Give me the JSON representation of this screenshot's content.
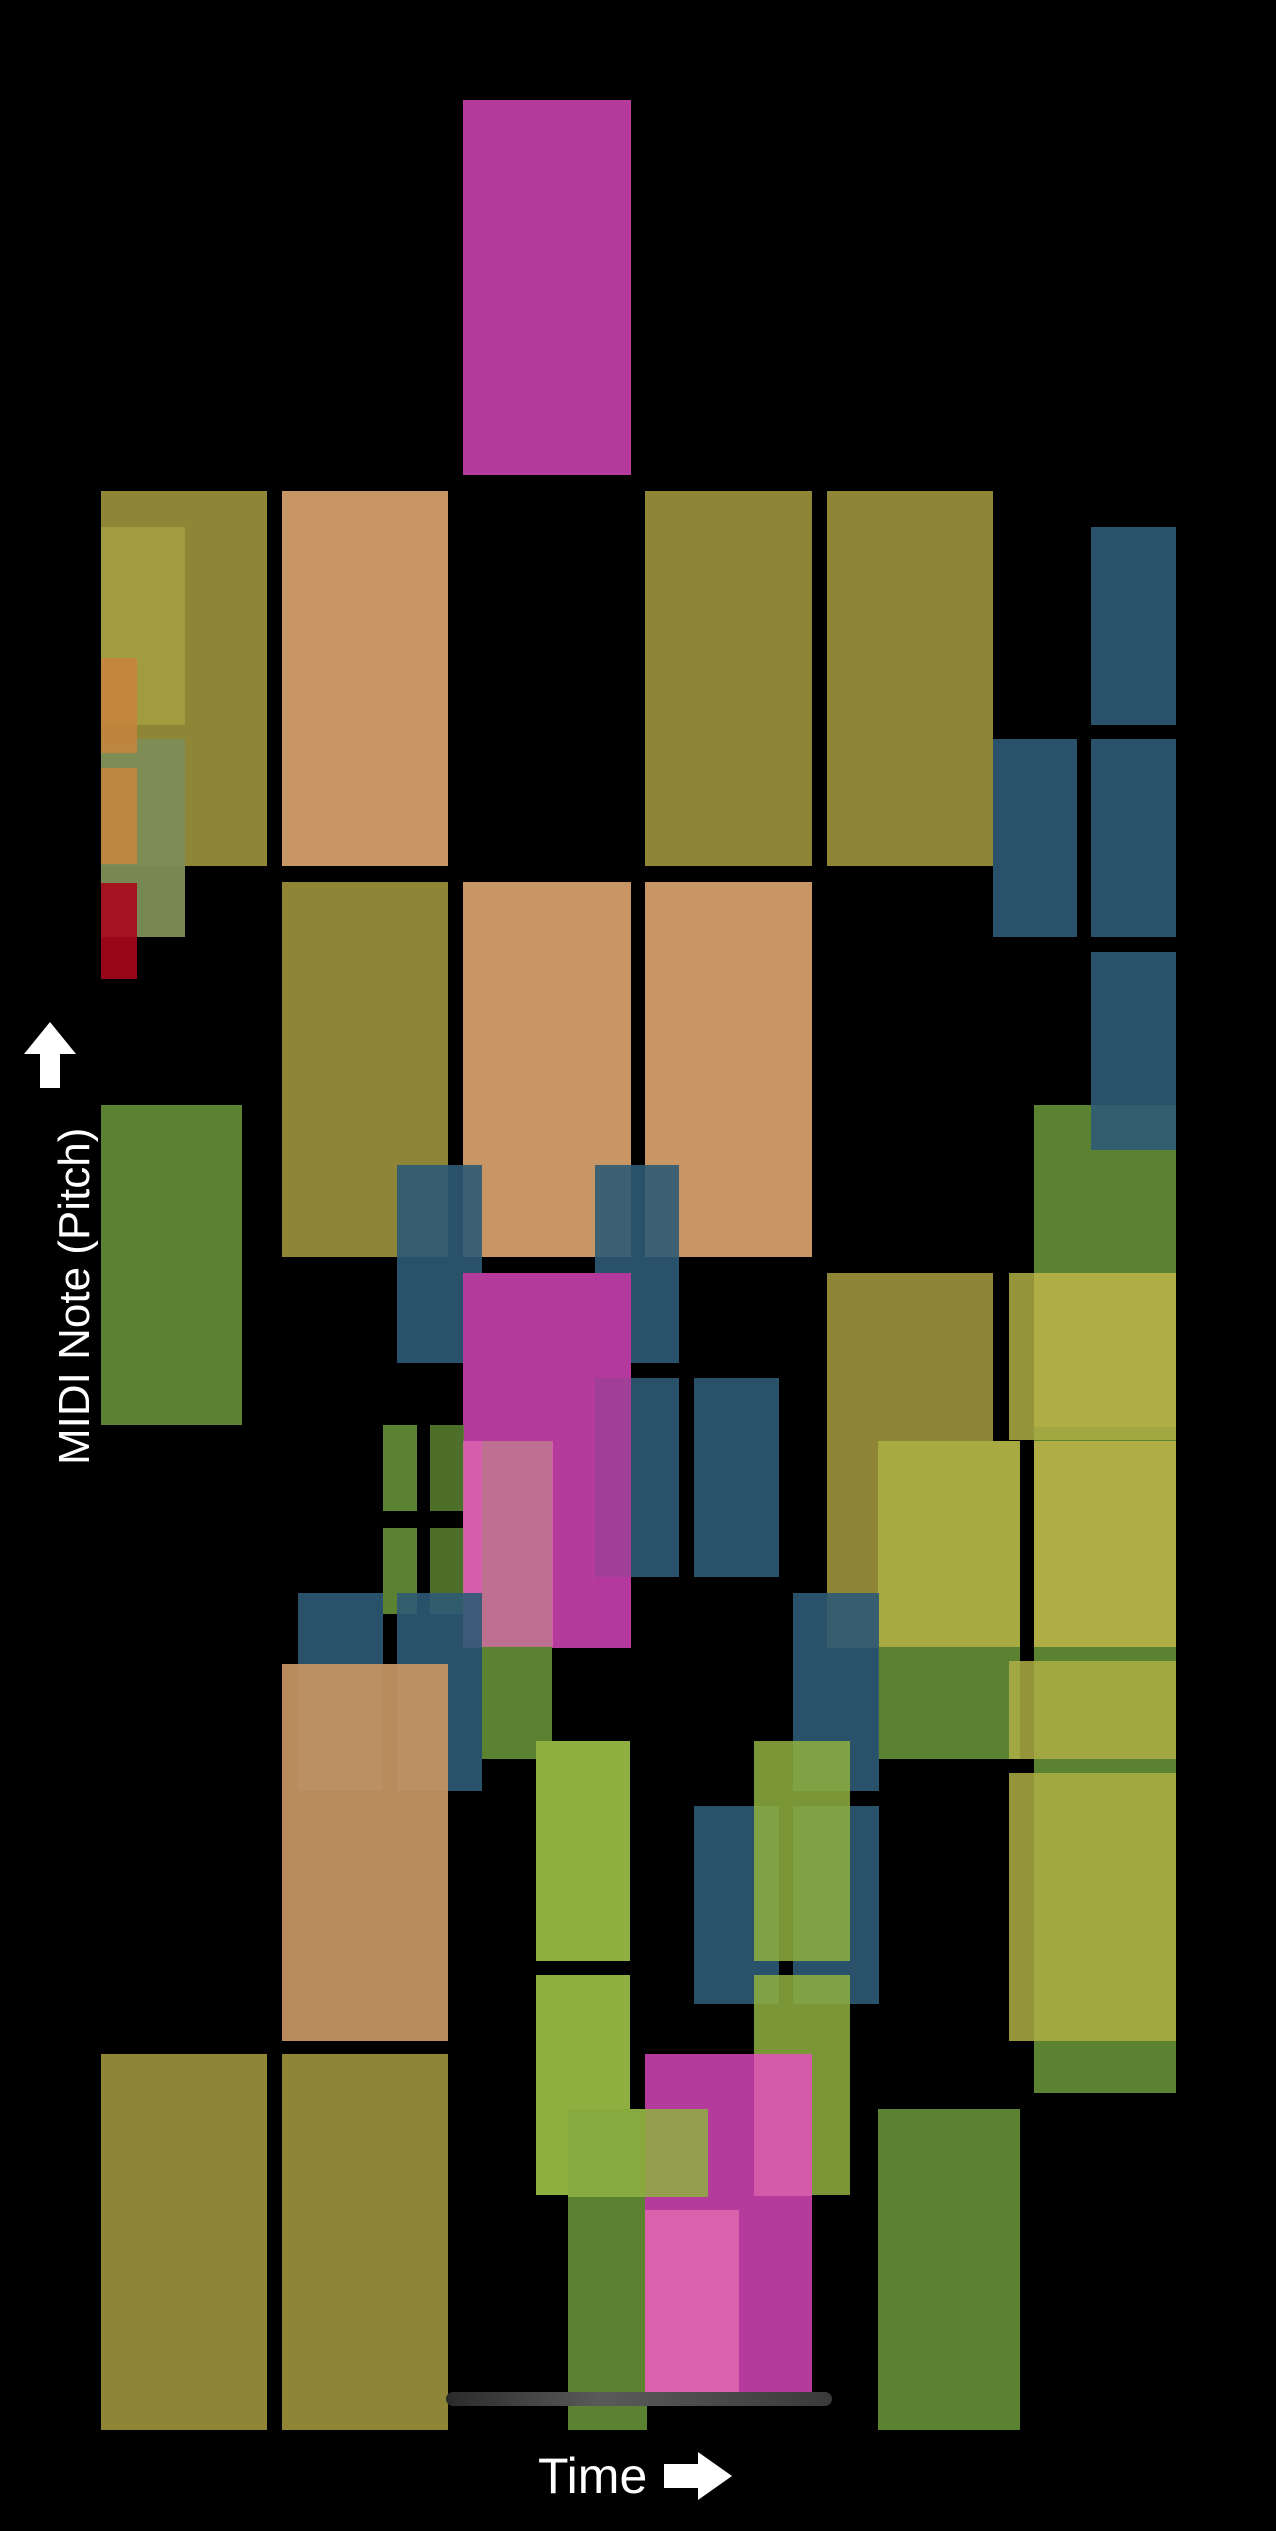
{
  "axes": {
    "y_label": "MIDI Note (Pitch)",
    "x_label": "Time",
    "y_arrow_icon": "arrow-up-icon",
    "x_arrow_icon": "arrow-right-icon"
  },
  "palette": {
    "olive": "#8f8536",
    "tan": "#c89664",
    "magenta": "#b43a9c",
    "pink": "#e06ab0",
    "steel_blue": "#2e5a74",
    "green": "#5a8230",
    "lime": "#8fb040",
    "yellow_green": "#aeae44",
    "orange": "#c8843c",
    "red": "#a8071a"
  },
  "notes": [
    {
      "c": "magenta",
      "o": 1,
      "r": [
        463,
        100,
        168,
        375
      ]
    },
    {
      "c": "olive",
      "o": 1,
      "r": [
        101,
        491,
        166,
        375
      ]
    },
    {
      "c": "tan",
      "o": 1,
      "r": [
        282,
        491,
        166,
        375
      ]
    },
    {
      "c": "olive",
      "o": 1,
      "r": [
        645,
        491,
        167,
        375
      ]
    },
    {
      "c": "olive",
      "o": 1,
      "r": [
        827,
        491,
        166,
        375
      ]
    },
    {
      "c": "olive",
      "o": 1,
      "r": [
        282,
        882,
        166,
        375
      ]
    },
    {
      "c": "tan",
      "o": 1,
      "r": [
        463,
        882,
        168,
        375
      ]
    },
    {
      "c": "tan",
      "o": 1,
      "r": [
        645,
        882,
        167,
        375
      ]
    },
    {
      "c": "green",
      "o": 1,
      "r": [
        101,
        1105,
        141,
        320
      ]
    },
    {
      "c": "steel_blue",
      "o": 0.9,
      "r": [
        1091,
        527,
        85,
        198
      ]
    },
    {
      "c": "steel_blue",
      "o": 0.9,
      "r": [
        993,
        739,
        84,
        198
      ]
    },
    {
      "c": "steel_blue",
      "o": 0.9,
      "r": [
        1091,
        739,
        85,
        198
      ]
    },
    {
      "c": "green",
      "o": 1,
      "r": [
        1034,
        1105,
        142,
        988
      ]
    },
    {
      "c": "steel_blue",
      "o": 0.9,
      "r": [
        1091,
        952,
        85,
        198
      ]
    },
    {
      "c": "steel_blue",
      "o": 0.9,
      "r": [
        101,
        739,
        84,
        198
      ]
    },
    {
      "c": "yellow_green",
      "o": 0.6,
      "r": [
        101,
        527,
        84,
        198
      ]
    },
    {
      "c": "yellow_green",
      "o": 0.6,
      "r": [
        101,
        739,
        84,
        198
      ]
    },
    {
      "c": "orange",
      "o": 0.85,
      "r": [
        101,
        658,
        36,
        95
      ]
    },
    {
      "c": "orange",
      "o": 0.85,
      "r": [
        101,
        768,
        36,
        96
      ]
    },
    {
      "c": "red",
      "o": 0.9,
      "r": [
        101,
        883,
        36,
        96
      ]
    },
    {
      "c": "steel_blue",
      "o": 0.9,
      "r": [
        397,
        1165,
        85,
        198
      ]
    },
    {
      "c": "steel_blue",
      "o": 0.9,
      "r": [
        595,
        1165,
        84,
        198
      ]
    },
    {
      "c": "magenta",
      "o": 1,
      "r": [
        463,
        1273,
        168,
        375
      ]
    },
    {
      "c": "steel_blue",
      "o": 0.9,
      "r": [
        595,
        1378,
        84,
        199
      ]
    },
    {
      "c": "steel_blue",
      "o": 0.9,
      "r": [
        694,
        1378,
        85,
        199
      ]
    },
    {
      "c": "olive",
      "o": 1,
      "r": [
        827,
        1273,
        166,
        375
      ]
    },
    {
      "c": "green",
      "o": 1,
      "r": [
        878,
        1441,
        142,
        318
      ]
    },
    {
      "c": "yellow_green",
      "o": 1,
      "r": [
        1034,
        1273,
        142,
        154
      ]
    },
    {
      "c": "yellow_green",
      "o": 1,
      "r": [
        1034,
        1441,
        142,
        206
      ]
    },
    {
      "c": "yellow_green",
      "o": 0.85,
      "r": [
        1009,
        1273,
        167,
        167
      ]
    },
    {
      "c": "yellow_green",
      "o": 0.85,
      "r": [
        1009,
        1661,
        167,
        98
      ]
    },
    {
      "c": "yellow_green",
      "o": 0.85,
      "r": [
        1009,
        1773,
        167,
        268
      ]
    },
    {
      "c": "yellow_green",
      "o": 0.9,
      "r": [
        878,
        1441,
        142,
        206
      ]
    },
    {
      "c": "green",
      "o": 1,
      "r": [
        383,
        1425,
        34,
        86
      ]
    },
    {
      "c": "green",
      "o": 1,
      "r": [
        383,
        1528,
        34,
        86
      ]
    },
    {
      "c": "green",
      "o": 0.85,
      "r": [
        430,
        1425,
        34,
        86
      ]
    },
    {
      "c": "green",
      "o": 0.85,
      "r": [
        430,
        1528,
        34,
        86
      ]
    },
    {
      "c": "green",
      "o": 1,
      "r": [
        482,
        1441,
        70,
        318
      ]
    },
    {
      "c": "pink",
      "o": 0.75,
      "r": [
        463,
        1441,
        90,
        206
      ]
    },
    {
      "c": "magenta",
      "o": 0.85,
      "r": [
        595,
        1273,
        36,
        375
      ]
    },
    {
      "c": "steel_blue",
      "o": 0.9,
      "r": [
        298,
        1593,
        85,
        198
      ]
    },
    {
      "c": "steel_blue",
      "o": 0.9,
      "r": [
        397,
        1593,
        85,
        198
      ]
    },
    {
      "c": "steel_blue",
      "o": 0.9,
      "r": [
        793,
        1593,
        86,
        198
      ]
    },
    {
      "c": "tan",
      "o": 0.92,
      "r": [
        282,
        1664,
        166,
        377
      ]
    },
    {
      "c": "lime",
      "o": 1,
      "r": [
        536,
        1741,
        94,
        220
      ]
    },
    {
      "c": "lime",
      "o": 1,
      "r": [
        536,
        1975,
        94,
        220
      ]
    },
    {
      "c": "steel_blue",
      "o": 0.9,
      "r": [
        694,
        1806,
        85,
        198
      ]
    },
    {
      "c": "steel_blue",
      "o": 0.9,
      "r": [
        793,
        1806,
        86,
        198
      ]
    },
    {
      "c": "lime",
      "o": 0.85,
      "r": [
        754,
        1741,
        96,
        220
      ]
    },
    {
      "c": "lime",
      "o": 0.85,
      "r": [
        754,
        1975,
        96,
        220
      ]
    },
    {
      "c": "olive",
      "o": 1,
      "r": [
        101,
        2054,
        166,
        376
      ]
    },
    {
      "c": "olive",
      "o": 1,
      "r": [
        282,
        2054,
        166,
        376
      ]
    },
    {
      "c": "green",
      "o": 1,
      "r": [
        568,
        2109,
        79,
        321
      ]
    },
    {
      "c": "magenta",
      "o": 1,
      "r": [
        645,
        2054,
        167,
        340
      ]
    },
    {
      "c": "pink",
      "o": 0.85,
      "r": [
        645,
        2210,
        94,
        184
      ]
    },
    {
      "c": "lime",
      "o": 0.85,
      "r": [
        568,
        2109,
        140,
        88
      ]
    },
    {
      "c": "pink",
      "o": 0.7,
      "r": [
        754,
        2054,
        58,
        142
      ]
    },
    {
      "c": "green",
      "o": 1,
      "r": [
        878,
        2109,
        142,
        321
      ]
    }
  ]
}
